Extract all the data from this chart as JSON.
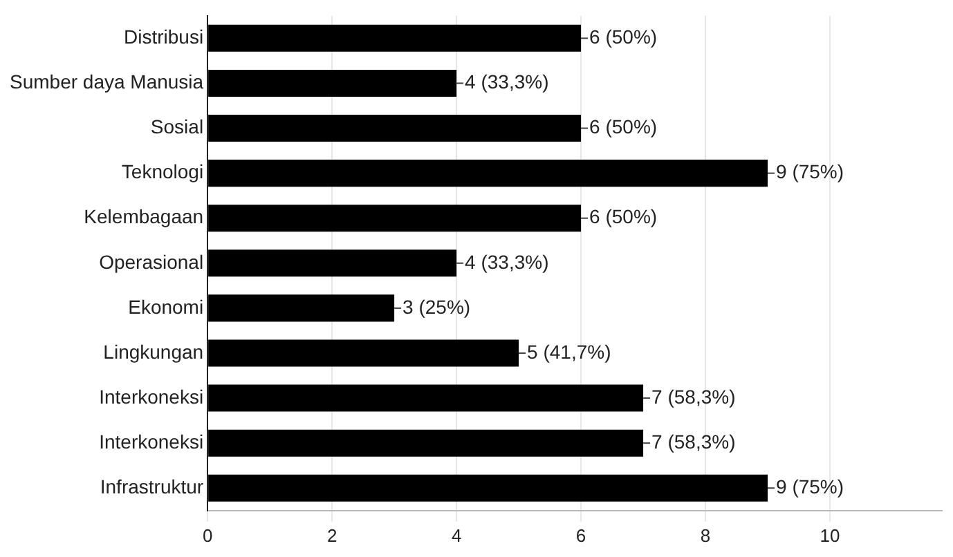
{
  "chart_data": {
    "type": "bar",
    "orientation": "horizontal",
    "categories": [
      "Distribusi",
      "Sumber daya Manusia",
      "Sosial",
      "Teknologi",
      "Kelembagaan",
      "Operasional",
      "Ekonomi",
      "Lingkungan",
      "Interkoneksi",
      "Interkoneksi",
      "Infrastruktur"
    ],
    "values": [
      6,
      4,
      6,
      9,
      6,
      4,
      3,
      5,
      7,
      7,
      9
    ],
    "value_labels": [
      "6 (50%)",
      "4 (33,3%)",
      "6 (50%)",
      "9 (75%)",
      "6 (50%)",
      "4 (33,3%)",
      "3 (25%)",
      "5 (41,7%)",
      "7 (58,3%)",
      "7 (58,3%)",
      "9 (75%)"
    ],
    "color": "#000000",
    "xlim": [
      0,
      11.8
    ],
    "xticks": [
      0,
      2,
      4,
      6,
      8,
      10
    ],
    "grid": "x",
    "legend": false
  }
}
